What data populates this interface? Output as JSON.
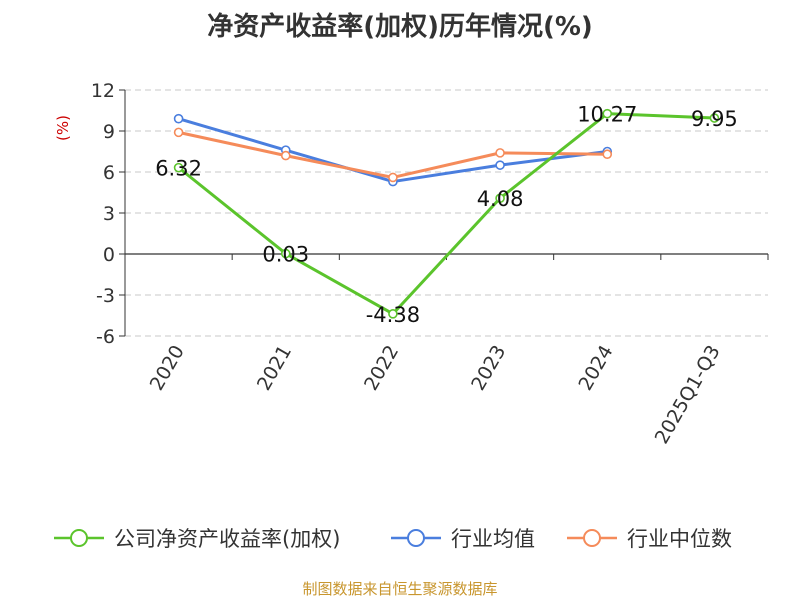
{
  "source": "制图数据来自恒生聚源数据库",
  "chart_data": {
    "type": "line",
    "title": "净资产收益率(加权)历年情况(%)",
    "ylabel": "(%)",
    "categories": [
      "2020",
      "2021",
      "2022",
      "2023",
      "2024",
      "2025Q1-Q3"
    ],
    "ylim": [
      -6,
      12
    ],
    "yticks": [
      -6,
      -3,
      0,
      3,
      6,
      9,
      12
    ],
    "grid": true,
    "legend_position": "bottom",
    "series": [
      {
        "name": "公司净资产收益率(加权)",
        "color": "#5bc42c",
        "values": [
          6.32,
          0.03,
          -4.38,
          4.08,
          10.27,
          9.95
        ],
        "labels": [
          "6.32",
          "0.03",
          "-4.38",
          "4.08",
          "10.27",
          "9.95"
        ]
      },
      {
        "name": "行业均值",
        "color": "#4a7ede",
        "values": [
          9.9,
          7.6,
          5.3,
          6.5,
          7.5,
          null
        ]
      },
      {
        "name": "行业中位数",
        "color": "#f58b5a",
        "values": [
          8.9,
          7.2,
          5.6,
          7.4,
          7.3,
          null
        ]
      }
    ]
  }
}
